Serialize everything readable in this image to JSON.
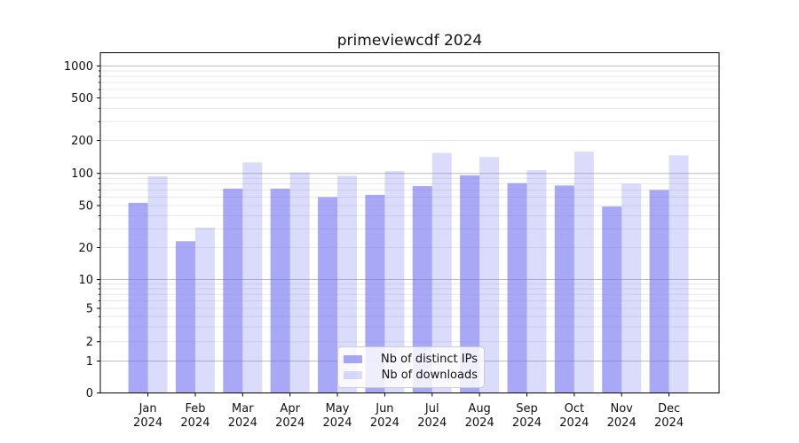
{
  "title": "primeviewcdf 2024",
  "chart_data": {
    "type": "bar",
    "title": "primeviewcdf 2024",
    "categories": [
      "Jan 2024",
      "Feb 2024",
      "Mar 2024",
      "Apr 2024",
      "May 2024",
      "Jun 2024",
      "Jul 2024",
      "Aug 2024",
      "Sep 2024",
      "Oct 2024",
      "Nov 2024",
      "Dec 2024"
    ],
    "month_labels": [
      "Jan",
      "Feb",
      "Mar",
      "Apr",
      "May",
      "Jun",
      "Jul",
      "Aug",
      "Sep",
      "Oct",
      "Nov",
      "Dec"
    ],
    "year_label": "2024",
    "series": [
      {
        "name": "Nb of distinct IPs",
        "values": [
          53,
          23,
          72,
          72,
          60,
          63,
          76,
          96,
          81,
          77,
          49,
          70
        ],
        "color": "#6e6ef0",
        "opacity": 0.6
      },
      {
        "name": "Nb of downloads",
        "values": [
          94,
          31,
          126,
          102,
          95,
          105,
          154,
          141,
          107,
          158,
          80,
          146
        ],
        "color": "#6e6ef0",
        "opacity": 0.25
      }
    ],
    "y_axis": {
      "scale": "symlog",
      "ticks": [
        0,
        1,
        2,
        5,
        10,
        20,
        50,
        100,
        200,
        500,
        1000
      ],
      "minor_gridlines": [
        3,
        4,
        6,
        7,
        8,
        9,
        30,
        40,
        60,
        70,
        80,
        90,
        300,
        400,
        600,
        700,
        800,
        900
      ]
    },
    "grid": "on",
    "legend": {
      "position": "lower center",
      "entries": [
        "Nb of distinct IPs",
        "Nb of downloads"
      ]
    },
    "colors": {
      "major_grid": "#bcbcbc",
      "minor_grid": "#e8e8e8",
      "axis": "#000000",
      "text": "#111111"
    }
  }
}
